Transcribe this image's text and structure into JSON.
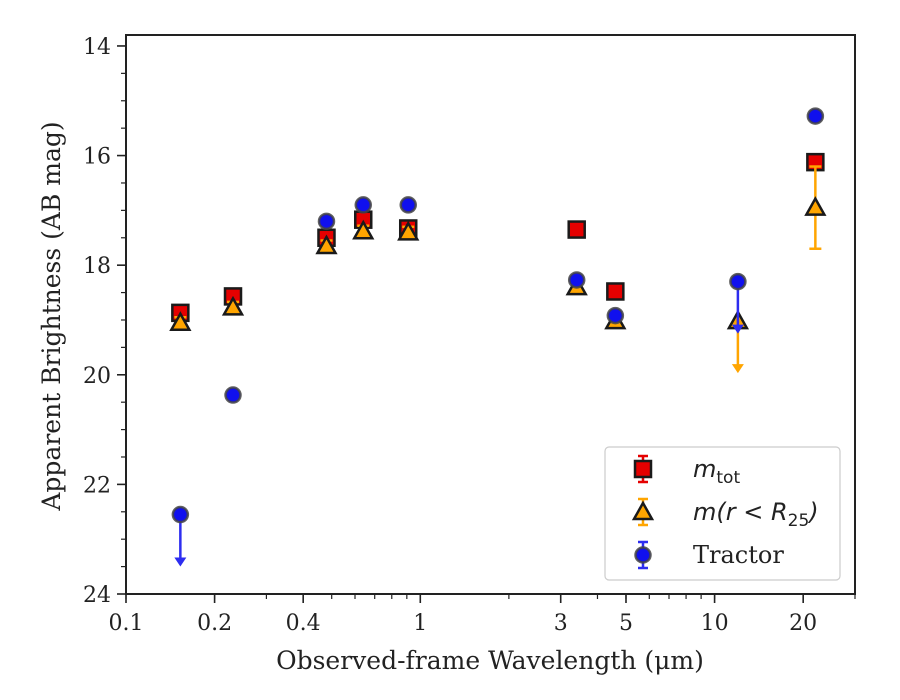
{
  "chart_data": {
    "type": "scatter",
    "xscale": "log",
    "xlim": [
      0.1,
      30
    ],
    "ylim": [
      24,
      13.8
    ],
    "y_inverted": true,
    "xlabel": "Observed-frame Wavelength (μm)",
    "ylabel": "Apparent Brightness (AB mag)",
    "x_ticks": [
      0.1,
      0.2,
      0.4,
      1,
      3,
      5,
      10,
      20
    ],
    "x_tick_labels": [
      "0.1",
      "0.2",
      "0.4",
      "1",
      "3",
      "5",
      "10",
      "20"
    ],
    "y_ticks": [
      14,
      16,
      18,
      20,
      22,
      24
    ],
    "y_tick_labels": [
      "14",
      "16",
      "18",
      "20",
      "22",
      "24"
    ],
    "grid": false,
    "legend_position": "bottom-right",
    "series": [
      {
        "name": "m_tot",
        "legend_base": "m",
        "legend_sub": "tot",
        "legend_after": "",
        "marker": "square",
        "fill": "#e50000",
        "edge": "#1a1a1a",
        "errcolor": "#e50000",
        "points": [
          {
            "x": 0.153,
            "y": 18.87,
            "err": 0.1
          },
          {
            "x": 0.231,
            "y": 18.57,
            "err": 0.1
          },
          {
            "x": 0.48,
            "y": 17.5,
            "err": 0.1
          },
          {
            "x": 0.64,
            "y": 17.17,
            "err": 0.1
          },
          {
            "x": 0.91,
            "y": 17.33,
            "err": 0.1
          },
          {
            "x": 3.4,
            "y": 17.35,
            "err": 0.1
          },
          {
            "x": 4.6,
            "y": 18.48,
            "err": 0.1
          },
          {
            "x": 22.0,
            "y": 16.12,
            "err": 0.1
          }
        ]
      },
      {
        "name": "m(r < R_25)",
        "legend_base": "m(r < R",
        "legend_sub": "25",
        "legend_after": ")",
        "marker": "triangle",
        "fill": "#ffa500",
        "edge": "#1a1a1a",
        "errcolor": "#ffa500",
        "points": [
          {
            "x": 0.153,
            "y": 19.05,
            "err": 0.1
          },
          {
            "x": 0.231,
            "y": 18.77,
            "err": 0.1
          },
          {
            "x": 0.48,
            "y": 17.65,
            "err": 0.1
          },
          {
            "x": 0.64,
            "y": 17.38,
            "err": 0.1
          },
          {
            "x": 0.91,
            "y": 17.4,
            "err": 0.1
          },
          {
            "x": 3.4,
            "y": 18.4,
            "err": 0.1
          },
          {
            "x": 4.6,
            "y": 19.02,
            "err": 0.1
          },
          {
            "x": 12.0,
            "y": 19.02,
            "err": 0,
            "upper_limit": true
          },
          {
            "x": 22.0,
            "y": 16.95,
            "err": 0.75
          }
        ]
      },
      {
        "name": "Tractor",
        "legend_base": "Tractor",
        "legend_sub": "",
        "legend_after": "",
        "marker": "circle",
        "fill": "#1010ee",
        "edge": "#444444",
        "errcolor": "#2d2df0",
        "points": [
          {
            "x": 0.153,
            "y": 22.55,
            "err": 0,
            "upper_limit": true
          },
          {
            "x": 0.231,
            "y": 20.37,
            "err": 0.05
          },
          {
            "x": 0.48,
            "y": 17.2,
            "err": 0.05
          },
          {
            "x": 0.64,
            "y": 16.9,
            "err": 0.05
          },
          {
            "x": 0.91,
            "y": 16.9,
            "err": 0.05
          },
          {
            "x": 3.4,
            "y": 18.27,
            "err": 0.05
          },
          {
            "x": 4.6,
            "y": 18.92,
            "err": 0.05
          },
          {
            "x": 12.0,
            "y": 18.3,
            "err": 0,
            "upper_limit": true
          },
          {
            "x": 22.0,
            "y": 15.28,
            "err": 0.05
          }
        ]
      }
    ]
  }
}
